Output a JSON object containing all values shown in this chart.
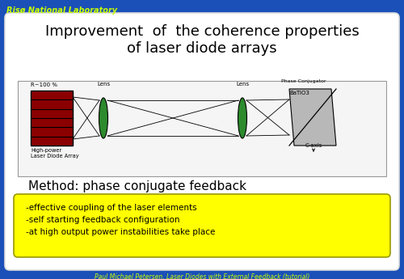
{
  "bg_color": "#1a50b8",
  "title_text": "Improvement  of  the coherence properties\nof laser diode arrays",
  "header_text": "Risø National Laboratory",
  "header_color": "#ccff00",
  "footer_text": "Paul Michael Petersen, Laser Diodes with External Feedback (tutorial)",
  "footer_color": "#ccff00",
  "yellow_box_color": "#ffff00",
  "yellow_box_text": "-effective coupling of the laser elements\n-self starting feedback configuration\n-at high output power instabilities take place",
  "method_text": "Method: phase conjugate feedback",
  "laser_color": "#8b0000",
  "lens_color": "#2d8a2d",
  "crystal_color": "#b8b8b8",
  "diag_bg": "#f5f5f5",
  "white_box": "#ffffff"
}
